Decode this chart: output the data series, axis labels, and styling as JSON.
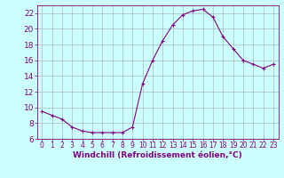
{
  "x": [
    0,
    1,
    2,
    3,
    4,
    5,
    6,
    7,
    8,
    9,
    10,
    11,
    12,
    13,
    14,
    15,
    16,
    17,
    18,
    19,
    20,
    21,
    22,
    23
  ],
  "y": [
    9.5,
    9.0,
    8.5,
    7.5,
    7.0,
    6.8,
    6.8,
    6.8,
    6.8,
    7.5,
    13.0,
    16.0,
    18.5,
    20.5,
    21.8,
    22.3,
    22.5,
    21.5,
    19.0,
    17.5,
    16.0,
    15.5,
    15.0,
    15.5
  ],
  "line_color": "#800080",
  "marker": "+",
  "background_color": "#ccffff",
  "grid_color": "#aabbbb",
  "xlabel": "Windchill (Refroidissement éolien,°C)",
  "xlim": [
    -0.5,
    23.5
  ],
  "ylim": [
    6,
    23
  ],
  "yticks": [
    6,
    8,
    10,
    12,
    14,
    16,
    18,
    20,
    22
  ],
  "xticks": [
    0,
    1,
    2,
    3,
    4,
    5,
    6,
    7,
    8,
    9,
    10,
    11,
    12,
    13,
    14,
    15,
    16,
    17,
    18,
    19,
    20,
    21,
    22,
    23
  ],
  "font_color": "#800080",
  "axis_color": "#800080",
  "xlabel_fontsize": 6.5,
  "ytick_fontsize": 6.5,
  "xtick_fontsize": 5.5
}
